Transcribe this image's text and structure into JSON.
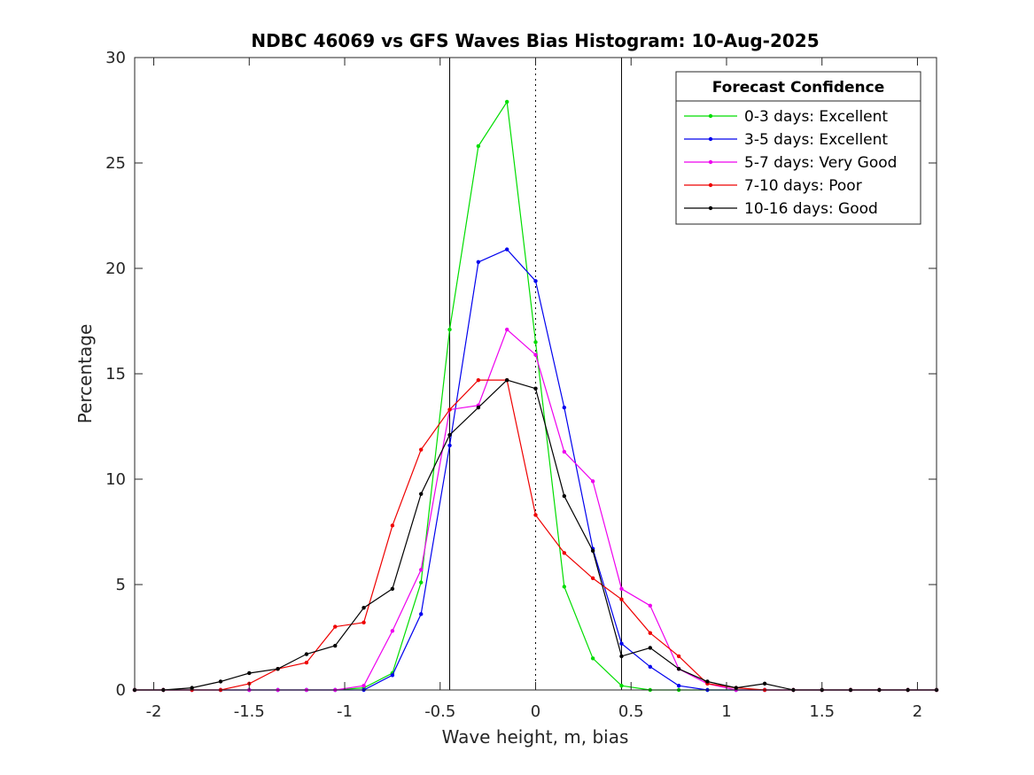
{
  "chart_data": {
    "type": "line",
    "title": "NDBC 46069 vs GFS Waves Bias Histogram: 10-Aug-2025",
    "xlabel": "Wave height, m, bias",
    "ylabel": "Percentage",
    "xlim": [
      -2.1,
      2.1
    ],
    "ylim": [
      0,
      30
    ],
    "xticks": [
      -2,
      -1.5,
      -1,
      -0.5,
      0,
      0.5,
      1,
      1.5,
      2
    ],
    "xtick_labels": [
      "-2",
      "-1.5",
      "-1",
      "-0.5",
      "0",
      "0.5",
      "1",
      "1.5",
      "2"
    ],
    "yticks": [
      0,
      5,
      10,
      15,
      20,
      25,
      30
    ],
    "ytick_labels": [
      "0",
      "5",
      "10",
      "15",
      "20",
      "25",
      "30"
    ],
    "grid": false,
    "legend": {
      "title": "Forecast Confidence",
      "position": "top-right"
    },
    "x": [
      -2.1,
      -1.95,
      -1.8,
      -1.65,
      -1.5,
      -1.35,
      -1.2,
      -1.05,
      -0.9,
      -0.75,
      -0.6,
      -0.45,
      -0.3,
      -0.15,
      0,
      0.15,
      0.3,
      0.45,
      0.6,
      0.75,
      0.9,
      1.05,
      1.2,
      1.35,
      1.5,
      1.65,
      1.8,
      1.95,
      2.1
    ],
    "series": [
      {
        "name": "0-3 days: Excellent",
        "color": "#00dd00",
        "values": [
          0,
          0,
          0,
          0,
          0,
          0,
          0,
          0,
          0.1,
          0.8,
          5.1,
          17.1,
          25.8,
          27.9,
          16.5,
          4.9,
          1.5,
          0.2,
          0.0,
          0,
          0,
          0,
          0,
          0,
          0,
          0,
          0,
          0,
          0
        ]
      },
      {
        "name": "3-5 days: Excellent",
        "color": "#0000ee",
        "values": [
          0,
          0,
          0,
          0,
          0,
          0,
          0,
          0,
          0.0,
          0.7,
          3.6,
          11.6,
          20.3,
          20.9,
          19.4,
          13.4,
          6.7,
          2.2,
          1.1,
          0.2,
          0.0,
          0,
          0,
          0,
          0,
          0,
          0,
          0,
          0
        ]
      },
      {
        "name": "5-7 days: Very Good",
        "color": "#ee00ee",
        "values": [
          0,
          0,
          0,
          0,
          0,
          0,
          0,
          0,
          0.2,
          2.8,
          5.7,
          13.3,
          13.5,
          17.1,
          15.9,
          11.3,
          9.9,
          4.8,
          4.0,
          1.0,
          0.3,
          0,
          0,
          0,
          0,
          0,
          0,
          0,
          0
        ]
      },
      {
        "name": "7-10 days: Poor",
        "color": "#ee0000",
        "values": [
          0,
          0,
          0,
          0,
          0.3,
          1.0,
          1.3,
          3.0,
          3.2,
          7.8,
          11.4,
          13.3,
          14.7,
          14.7,
          8.3,
          6.5,
          5.3,
          4.3,
          2.7,
          1.6,
          0.3,
          0.1,
          0,
          0,
          0,
          0,
          0,
          0,
          0
        ]
      },
      {
        "name": "10-16 days: Good",
        "color": "#000000",
        "values": [
          0,
          0,
          0.1,
          0.4,
          0.8,
          1.0,
          1.7,
          2.1,
          3.9,
          4.8,
          9.3,
          12.1,
          13.4,
          14.7,
          14.3,
          9.2,
          6.6,
          1.6,
          2.0,
          1.0,
          0.4,
          0.1,
          0.3,
          0,
          0,
          0,
          0,
          0,
          0
        ]
      }
    ],
    "reference_lines": [
      {
        "x": -0.45,
        "style": "solid"
      },
      {
        "x": 0,
        "style": "dotted"
      },
      {
        "x": 0.45,
        "style": "solid"
      }
    ]
  }
}
